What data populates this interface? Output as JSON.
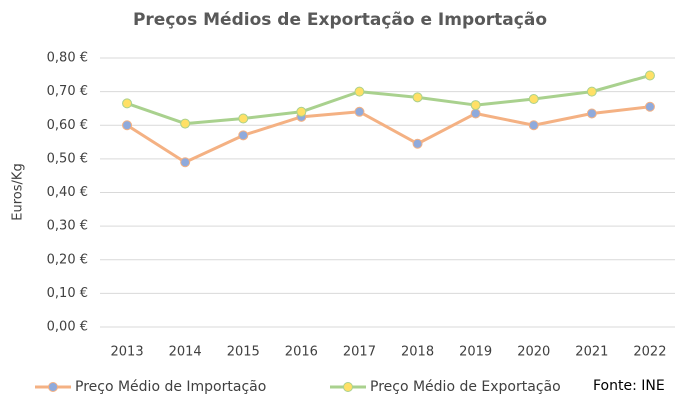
{
  "chart_data": {
    "type": "line",
    "title": "Preços Médios de Exportação e Importação",
    "ylabel": "Euros/Kg",
    "annotation": "Fonte: INE",
    "categories": [
      "2013",
      "2014",
      "2015",
      "2016",
      "2017",
      "2018",
      "2019",
      "2020",
      "2021",
      "2022"
    ],
    "series": [
      {
        "name": "Preço Médio de Importação",
        "color": "#f4b183",
        "marker_color": "#8faadc",
        "values": [
          0.6,
          0.49,
          0.57,
          0.625,
          0.64,
          0.545,
          0.635,
          0.6,
          0.635,
          0.655
        ]
      },
      {
        "name": "Preço Médio de Exportação",
        "color": "#a9d18e",
        "marker_color": "#ffe066",
        "values": [
          0.665,
          0.605,
          0.62,
          0.64,
          0.7,
          0.683,
          0.66,
          0.678,
          0.7,
          0.748
        ]
      }
    ],
    "ylim": [
      0,
      0.8
    ],
    "yticks": [
      {
        "value": 0,
        "label": "0,00 €"
      },
      {
        "value": 0.1,
        "label": "0,10 €"
      },
      {
        "value": 0.2,
        "label": "0,20 €"
      },
      {
        "value": 0.3,
        "label": "0,30 €"
      },
      {
        "value": 0.4,
        "label": "0,40 €"
      },
      {
        "value": 0.5,
        "label": "0,50 €"
      },
      {
        "value": 0.6,
        "label": "0,60 €"
      },
      {
        "value": 0.7,
        "label": "0,70 €"
      },
      {
        "value": 0.8,
        "label": "0,80 €"
      }
    ],
    "grid": true
  }
}
